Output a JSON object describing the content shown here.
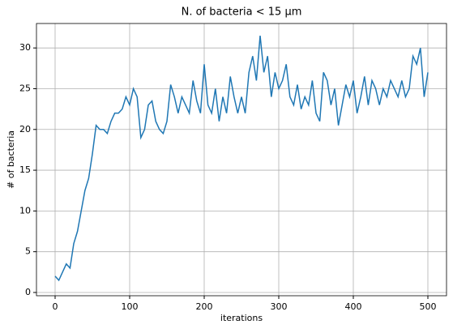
{
  "chart_data": {
    "type": "line",
    "title": "N. of bacteria < 15 μm",
    "xlabel": "iterations",
    "ylabel": "# of bacteria",
    "x": [
      0,
      5,
      10,
      15,
      20,
      25,
      30,
      35,
      40,
      45,
      50,
      55,
      60,
      65,
      70,
      75,
      80,
      85,
      90,
      95,
      100,
      105,
      110,
      115,
      120,
      125,
      130,
      135,
      140,
      145,
      150,
      155,
      160,
      165,
      170,
      175,
      180,
      185,
      190,
      195,
      200,
      205,
      210,
      215,
      220,
      225,
      230,
      235,
      240,
      245,
      250,
      255,
      260,
      265,
      270,
      275,
      280,
      285,
      290,
      295,
      300,
      305,
      310,
      315,
      320,
      325,
      330,
      335,
      340,
      345,
      350,
      355,
      360,
      365,
      370,
      375,
      380,
      385,
      390,
      395,
      400,
      405,
      410,
      415,
      420,
      425,
      430,
      435,
      440,
      445,
      450,
      455,
      460,
      465,
      470,
      475,
      480,
      485,
      490,
      495,
      500
    ],
    "series": [
      {
        "name": "bacteria",
        "color": "#1f77b4",
        "values": [
          2,
          1.5,
          2.5,
          3.5,
          3,
          6,
          7.5,
          10,
          12.5,
          14,
          17,
          20.5,
          20,
          20,
          19.5,
          21,
          22,
          22,
          22.5,
          24,
          23,
          25,
          24,
          19,
          20,
          23,
          23.5,
          21,
          20,
          19.5,
          21,
          25.5,
          24,
          22,
          24,
          23,
          22,
          26,
          23.5,
          22,
          28,
          23,
          22,
          25,
          21,
          24,
          22,
          26.5,
          24,
          22,
          24,
          22,
          27,
          29,
          26,
          31.5,
          27,
          29,
          24,
          27,
          25,
          26,
          28,
          24,
          23,
          25.5,
          22.5,
          24,
          23,
          26,
          22,
          21,
          27,
          26,
          23,
          25,
          20.5,
          23,
          25.5,
          24,
          26,
          22,
          24,
          26.5,
          23,
          26,
          25,
          23,
          25,
          24,
          26,
          25,
          24,
          26,
          24,
          25,
          29,
          28,
          30,
          24,
          27
        ]
      }
    ],
    "xlim": [
      -25,
      525
    ],
    "ylim": [
      -0.4,
      33
    ],
    "xticks": [
      0,
      100,
      200,
      300,
      400,
      500
    ],
    "yticks": [
      0,
      5,
      10,
      15,
      20,
      25,
      30
    ],
    "grid": true
  }
}
